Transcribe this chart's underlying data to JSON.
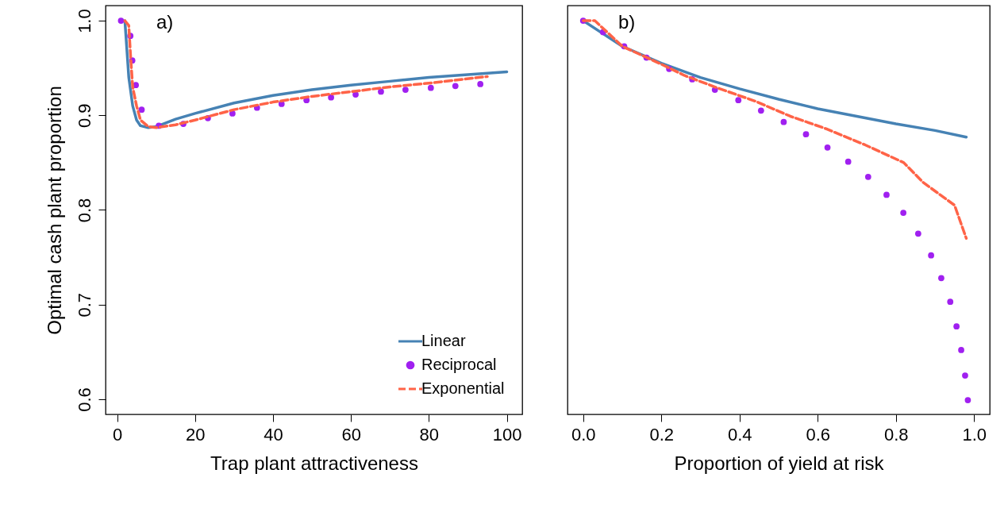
{
  "chart_data": [
    {
      "type": "line",
      "xlabel": "Trap plant attractiveness",
      "ylabel": "Optimal cash plant proportion",
      "annotations": [
        "a)"
      ],
      "legend": "bottom right",
      "grid": false,
      "xlim": [
        -2.96,
        103.96
      ],
      "xticks": [
        0,
        20,
        40,
        60,
        80,
        100
      ],
      "ylim": [
        0.584,
        1.016
      ],
      "yticks": [
        0.6,
        0.7,
        0.8,
        0.9,
        {
          "value": 1,
          "label": "1.0"
        }
      ],
      "series": [
        {
          "name": "Linear",
          "type": "line",
          "line_style": "solid",
          "color": "#4682b4",
          "x": [
            2,
            2.5,
            3,
            4,
            5,
            6,
            8,
            10,
            15,
            20,
            30,
            40,
            50,
            60,
            70,
            80,
            90,
            100
          ],
          "values": [
            1.0,
            0.97,
            0.94,
            0.91,
            0.895,
            0.889,
            0.887,
            0.888,
            0.896,
            0.902,
            0.913,
            0.921,
            0.927,
            0.932,
            0.936,
            0.94,
            0.943,
            0.946
          ]
        },
        {
          "name": "Reciprocal",
          "type": "scatter",
          "marker": "circle",
          "color": "#a020f0",
          "x": [
            1,
            3.4,
            3.9,
            4.8,
            6.3,
            10.7,
            17,
            23.3,
            29.6,
            35.9,
            42.2,
            48.6,
            54.9,
            61.2,
            67.7,
            74,
            80.5,
            86.8,
            93.2
          ],
          "values": [
            1.0,
            0.984,
            0.958,
            0.932,
            0.906,
            0.889,
            0.891,
            0.897,
            0.902,
            0.908,
            0.912,
            0.916,
            0.919,
            0.922,
            0.925,
            0.927,
            0.929,
            0.931,
            0.933
          ]
        },
        {
          "name": "Exponential",
          "type": "line",
          "line_style": "dashed",
          "color": "#ff6347",
          "x": [
            2,
            3,
            3.5,
            4,
            5,
            6,
            8,
            10,
            15,
            20,
            30,
            40,
            50,
            60,
            70,
            80,
            95
          ],
          "values": [
            1.0,
            0.995,
            0.96,
            0.93,
            0.91,
            0.895,
            0.888,
            0.887,
            0.89,
            0.895,
            0.906,
            0.914,
            0.92,
            0.925,
            0.93,
            0.934,
            0.941
          ]
        }
      ]
    },
    {
      "type": "line",
      "xlabel": "Proportion of yield at risk",
      "annotations": [
        "b)"
      ],
      "tick_labels": "x",
      "grid": false,
      "xlim": [
        -0.04,
        1.04
      ],
      "xticks": [
        {
          "value": 0,
          "label": "0.0"
        },
        0.2,
        0.4,
        0.6,
        0.8,
        {
          "value": 1,
          "label": "1.0"
        }
      ],
      "ylim": [
        0.584,
        1.016
      ],
      "series": [
        {
          "type": "line",
          "line_style": "solid",
          "color": "#4682b4",
          "x": [
            0,
            0.1,
            0.2,
            0.3,
            0.4,
            0.5,
            0.6,
            0.7,
            0.8,
            0.9,
            0.98
          ],
          "values": [
            1.0,
            0.973,
            0.955,
            0.94,
            0.928,
            0.917,
            0.907,
            0.899,
            0.891,
            0.884,
            0.877
          ]
        },
        {
          "type": "scatter",
          "marker": "circle",
          "color": "#a020f0",
          "x": [
            0,
            0.051,
            0.105,
            0.162,
            0.22,
            0.279,
            0.337,
            0.397,
            0.455,
            0.513,
            0.57,
            0.625,
            0.678,
            0.729,
            0.776,
            0.819,
            0.857,
            0.89,
            0.916,
            0.939,
            0.955,
            0.967,
            0.977,
            0.984
          ],
          "values": [
            1.0,
            0.988,
            0.973,
            0.961,
            0.949,
            0.938,
            0.927,
            0.916,
            0.905,
            0.893,
            0.88,
            0.866,
            0.851,
            0.835,
            0.816,
            0.797,
            0.775,
            0.752,
            0.728,
            0.703,
            0.677,
            0.652,
            0.625,
            0.599
          ]
        },
        {
          "type": "line",
          "line_style": "dashed",
          "color": "#ff6347",
          "x": [
            0,
            0.03,
            0.1,
            0.2,
            0.26,
            0.35,
            0.44,
            0.53,
            0.62,
            0.72,
            0.82,
            0.87,
            0.95,
            0.98
          ],
          "values": [
            1.0,
            1.0,
            0.973,
            0.954,
            0.942,
            0.928,
            0.915,
            0.899,
            0.886,
            0.869,
            0.85,
            0.829,
            0.805,
            0.77
          ]
        }
      ]
    }
  ]
}
